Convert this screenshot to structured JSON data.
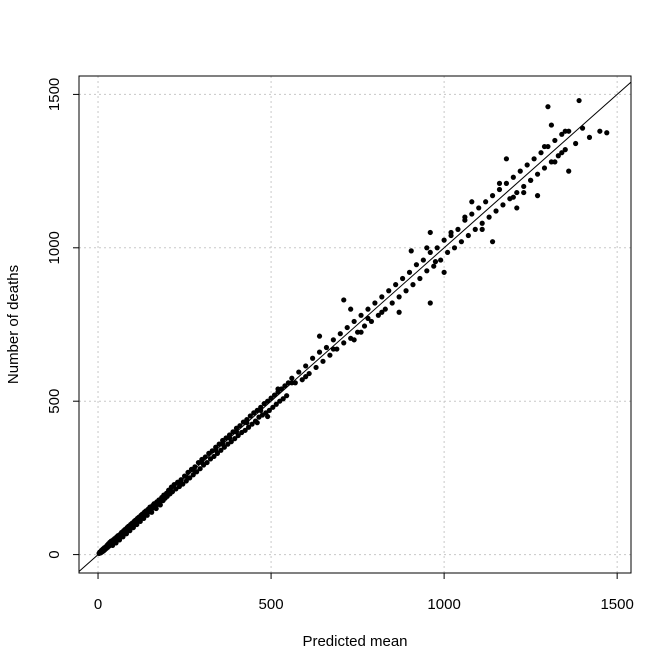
{
  "chart_data": {
    "type": "scatter",
    "title": "",
    "xlabel": "Predicted mean",
    "ylabel": "Number of deaths",
    "xlim": [
      -55,
      1540
    ],
    "ylim": [
      -60,
      1560
    ],
    "xticks": [
      0,
      500,
      1000,
      1500
    ],
    "yticks": [
      0,
      500,
      1000,
      1500
    ],
    "grid": true,
    "reference_line": "y = x",
    "points": [
      [
        3,
        4
      ],
      [
        5,
        8
      ],
      [
        8,
        6
      ],
      [
        10,
        14
      ],
      [
        12,
        9
      ],
      [
        14,
        18
      ],
      [
        16,
        12
      ],
      [
        18,
        22
      ],
      [
        20,
        16
      ],
      [
        22,
        25
      ],
      [
        24,
        20
      ],
      [
        26,
        30
      ],
      [
        28,
        24
      ],
      [
        30,
        35
      ],
      [
        32,
        28
      ],
      [
        34,
        40
      ],
      [
        36,
        33
      ],
      [
        38,
        44
      ],
      [
        40,
        36
      ],
      [
        42,
        30
      ],
      [
        44,
        48
      ],
      [
        46,
        40
      ],
      [
        48,
        52
      ],
      [
        50,
        45
      ],
      [
        52,
        38
      ],
      [
        54,
        58
      ],
      [
        56,
        50
      ],
      [
        58,
        62
      ],
      [
        60,
        55
      ],
      [
        62,
        48
      ],
      [
        64,
        66
      ],
      [
        66,
        60
      ],
      [
        68,
        72
      ],
      [
        70,
        64
      ],
      [
        72,
        58
      ],
      [
        74,
        78
      ],
      [
        76,
        70
      ],
      [
        78,
        82
      ],
      [
        80,
        74
      ],
      [
        82,
        68
      ],
      [
        84,
        88
      ],
      [
        86,
        80
      ],
      [
        88,
        92
      ],
      [
        90,
        84
      ],
      [
        92,
        78
      ],
      [
        94,
        98
      ],
      [
        96,
        90
      ],
      [
        98,
        102
      ],
      [
        100,
        94
      ],
      [
        102,
        88
      ],
      [
        104,
        108
      ],
      [
        106,
        100
      ],
      [
        108,
        112
      ],
      [
        110,
        104
      ],
      [
        112,
        98
      ],
      [
        114,
        118
      ],
      [
        116,
        110
      ],
      [
        118,
        122
      ],
      [
        120,
        114
      ],
      [
        122,
        108
      ],
      [
        124,
        128
      ],
      [
        126,
        120
      ],
      [
        128,
        132
      ],
      [
        130,
        124
      ],
      [
        132,
        118
      ],
      [
        134,
        138
      ],
      [
        136,
        130
      ],
      [
        138,
        142
      ],
      [
        140,
        134
      ],
      [
        142,
        128
      ],
      [
        145,
        148
      ],
      [
        148,
        140
      ],
      [
        150,
        155
      ],
      [
        152,
        146
      ],
      [
        155,
        138
      ],
      [
        158,
        160
      ],
      [
        160,
        152
      ],
      [
        162,
        166
      ],
      [
        165,
        158
      ],
      [
        168,
        150
      ],
      [
        170,
        172
      ],
      [
        173,
        164
      ],
      [
        176,
        178
      ],
      [
        178,
        170
      ],
      [
        180,
        162
      ],
      [
        184,
        186
      ],
      [
        188,
        176
      ],
      [
        190,
        194
      ],
      [
        194,
        184
      ],
      [
        198,
        200
      ],
      [
        200,
        190
      ],
      [
        204,
        210
      ],
      [
        208,
        198
      ],
      [
        212,
        220
      ],
      [
        215,
        205
      ],
      [
        220,
        228
      ],
      [
        225,
        214
      ],
      [
        230,
        236
      ],
      [
        235,
        222
      ],
      [
        240,
        244
      ],
      [
        245,
        230
      ],
      [
        250,
        256
      ],
      [
        255,
        240
      ],
      [
        260,
        268
      ],
      [
        265,
        250
      ],
      [
        270,
        278
      ],
      [
        275,
        260
      ],
      [
        280,
        286
      ],
      [
        285,
        270
      ],
      [
        290,
        300
      ],
      [
        295,
        280
      ],
      [
        300,
        310
      ],
      [
        305,
        292
      ],
      [
        310,
        318
      ],
      [
        315,
        300
      ],
      [
        320,
        330
      ],
      [
        325,
        312
      ],
      [
        330,
        338
      ],
      [
        335,
        320
      ],
      [
        340,
        350
      ],
      [
        345,
        330
      ],
      [
        350,
        360
      ],
      [
        355,
        340
      ],
      [
        360,
        372
      ],
      [
        365,
        350
      ],
      [
        370,
        380
      ],
      [
        375,
        360
      ],
      [
        380,
        390
      ],
      [
        385,
        368
      ],
      [
        390,
        400
      ],
      [
        395,
        378
      ],
      [
        400,
        412
      ],
      [
        405,
        388
      ],
      [
        410,
        420
      ],
      [
        415,
        398
      ],
      [
        420,
        432
      ],
      [
        425,
        405
      ],
      [
        430,
        440
      ],
      [
        435,
        415
      ],
      [
        440,
        452
      ],
      [
        445,
        425
      ],
      [
        450,
        462
      ],
      [
        455,
        435
      ],
      [
        460,
        470
      ],
      [
        465,
        448
      ],
      [
        470,
        480
      ],
      [
        475,
        455
      ],
      [
        480,
        492
      ],
      [
        485,
        462
      ],
      [
        490,
        500
      ],
      [
        495,
        470
      ],
      [
        500,
        510
      ],
      [
        505,
        480
      ],
      [
        510,
        520
      ],
      [
        515,
        490
      ],
      [
        520,
        530
      ],
      [
        525,
        500
      ],
      [
        530,
        540
      ],
      [
        535,
        508
      ],
      [
        540,
        550
      ],
      [
        545,
        518
      ],
      [
        550,
        560
      ],
      [
        560,
        575
      ],
      [
        570,
        560
      ],
      [
        580,
        595
      ],
      [
        590,
        570
      ],
      [
        600,
        615
      ],
      [
        610,
        590
      ],
      [
        620,
        640
      ],
      [
        630,
        610
      ],
      [
        640,
        660
      ],
      [
        650,
        630
      ],
      [
        660,
        675
      ],
      [
        670,
        650
      ],
      [
        680,
        700
      ],
      [
        690,
        670
      ],
      [
        700,
        720
      ],
      [
        710,
        690
      ],
      [
        720,
        740
      ],
      [
        730,
        705
      ],
      [
        740,
        760
      ],
      [
        750,
        725
      ],
      [
        760,
        780
      ],
      [
        770,
        745
      ],
      [
        780,
        800
      ],
      [
        790,
        760
      ],
      [
        800,
        820
      ],
      [
        810,
        780
      ],
      [
        820,
        840
      ],
      [
        830,
        800
      ],
      [
        840,
        860
      ],
      [
        850,
        820
      ],
      [
        860,
        880
      ],
      [
        870,
        840
      ],
      [
        880,
        900
      ],
      [
        890,
        860
      ],
      [
        900,
        920
      ],
      [
        910,
        880
      ],
      [
        920,
        945
      ],
      [
        930,
        900
      ],
      [
        940,
        960
      ],
      [
        950,
        925
      ],
      [
        960,
        985
      ],
      [
        970,
        940
      ],
      [
        980,
        1000
      ],
      [
        990,
        960
      ],
      [
        1000,
        1025
      ],
      [
        1010,
        985
      ],
      [
        1020,
        1040
      ],
      [
        1030,
        1000
      ],
      [
        1040,
        1060
      ],
      [
        1050,
        1020
      ],
      [
        1060,
        1090
      ],
      [
        1070,
        1040
      ],
      [
        1080,
        1110
      ],
      [
        1090,
        1060
      ],
      [
        1100,
        1130
      ],
      [
        1110,
        1080
      ],
      [
        1120,
        1150
      ],
      [
        1130,
        1100
      ],
      [
        1140,
        1170
      ],
      [
        1150,
        1120
      ],
      [
        1160,
        1190
      ],
      [
        1170,
        1140
      ],
      [
        1180,
        1210
      ],
      [
        1190,
        1160
      ],
      [
        1200,
        1230
      ],
      [
        1210,
        1180
      ],
      [
        1220,
        1250
      ],
      [
        1230,
        1200
      ],
      [
        1240,
        1270
      ],
      [
        1250,
        1220
      ],
      [
        1260,
        1290
      ],
      [
        1270,
        1240
      ],
      [
        1280,
        1310
      ],
      [
        1290,
        1260
      ],
      [
        1300,
        1330
      ],
      [
        1310,
        1280
      ],
      [
        1320,
        1350
      ],
      [
        1330,
        1300
      ],
      [
        1340,
        1370
      ],
      [
        1350,
        1320
      ],
      [
        1360,
        1380
      ],
      [
        1380,
        1340
      ],
      [
        1400,
        1390
      ],
      [
        1420,
        1360
      ],
      [
        1450,
        1380
      ],
      [
        1470,
        1375
      ],
      [
        640,
        712
      ],
      [
        710,
        830
      ],
      [
        730,
        800
      ],
      [
        760,
        725
      ],
      [
        905,
        990
      ],
      [
        950,
        1000
      ],
      [
        960,
        1050
      ],
      [
        975,
        955
      ],
      [
        1000,
        920
      ],
      [
        1020,
        1050
      ],
      [
        1060,
        1100
      ],
      [
        1080,
        1150
      ],
      [
        1110,
        1060
      ],
      [
        1140,
        1020
      ],
      [
        1160,
        1210
      ],
      [
        1180,
        1290
      ],
      [
        1200,
        1165
      ],
      [
        1210,
        1130
      ],
      [
        1230,
        1180
      ],
      [
        1250,
        1220
      ],
      [
        1270,
        1170
      ],
      [
        1290,
        1330
      ],
      [
        1300,
        1460
      ],
      [
        1320,
        1280
      ],
      [
        1340,
        1310
      ],
      [
        1360,
        1250
      ],
      [
        1390,
        1480
      ],
      [
        1310,
        1400
      ],
      [
        1350,
        1380
      ],
      [
        960,
        820
      ],
      [
        870,
        790
      ],
      [
        820,
        790
      ],
      [
        780,
        770
      ],
      [
        740,
        700
      ],
      [
        680,
        670
      ],
      [
        600,
        580
      ],
      [
        560,
        560
      ],
      [
        520,
        540
      ],
      [
        490,
        450
      ],
      [
        470,
        470
      ],
      [
        460,
        430
      ],
      [
        430,
        430
      ],
      [
        400,
        400
      ],
      [
        380,
        380
      ],
      [
        360,
        360
      ],
      [
        340,
        340
      ],
      [
        300,
        300
      ],
      [
        280,
        270
      ],
      [
        260,
        250
      ],
      [
        240,
        230
      ]
    ]
  }
}
